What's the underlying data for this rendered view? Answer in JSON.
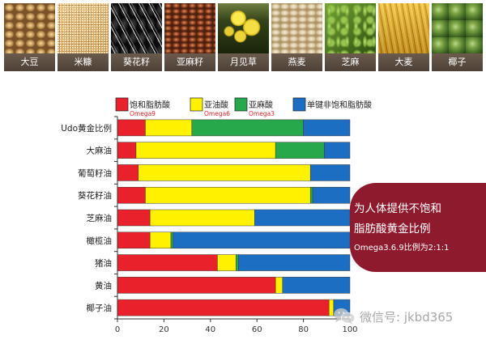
{
  "foods": [
    {
      "label": "大豆"
    },
    {
      "label": "米糠"
    },
    {
      "label": "葵花籽"
    },
    {
      "label": "亚麻籽"
    },
    {
      "label": "月见草"
    },
    {
      "label": "燕麦"
    },
    {
      "label": "芝麻"
    },
    {
      "label": "大麦"
    },
    {
      "label": "椰子"
    }
  ],
  "chart_data": {
    "type": "bar",
    "orientation": "horizontal",
    "stacked": true,
    "categories": [
      "Udo黄金比例",
      "大麻油",
      "葡萄籽油",
      "葵花籽油",
      "芝麻油",
      "橄榄油",
      "猪油",
      "黄油",
      "椰子油"
    ],
    "series": [
      {
        "name": "饱和脂肪酸",
        "sublabel": "Omega9",
        "color": "#e8212b",
        "values": [
          12,
          8,
          9,
          12,
          14,
          14,
          43,
          68,
          91
        ]
      },
      {
        "name": "亚油酸",
        "sublabel": "Omega6",
        "color": "#fff100",
        "values": [
          20,
          60,
          74,
          71,
          45,
          9,
          8,
          3,
          2
        ]
      },
      {
        "name": "亚麻酸",
        "sublabel": "Omega3",
        "color": "#27a84b",
        "values": [
          48,
          21,
          0,
          1,
          0,
          1,
          1,
          0,
          0
        ]
      },
      {
        "name": "单键非饱和脂肪酸",
        "sublabel": "",
        "color": "#1c6ec3",
        "values": [
          20,
          11,
          17,
          16,
          41,
          76,
          48,
          29,
          7
        ]
      }
    ],
    "xticks": [
      0,
      20,
      40,
      60,
      80,
      100
    ],
    "xlim": [
      0,
      100
    ],
    "grid": false,
    "legend": "top"
  },
  "callout": {
    "line1": "为人体提供不饱和",
    "line2": "脂肪酸黄金比例",
    "line3": "Omega3.6.9比例为2:1:1",
    "color": "#8e1a2e"
  },
  "watermark": {
    "icon": "wechat-icon",
    "text": "微信号: jkbd365"
  }
}
